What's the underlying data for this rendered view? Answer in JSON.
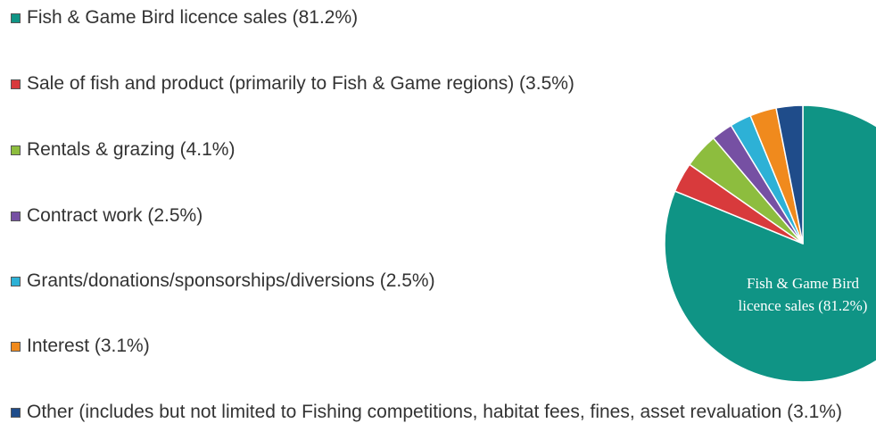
{
  "chart_data": {
    "type": "pie",
    "categories": [
      "Fish & Game Bird licence sales (81.2%)",
      "Sale of fish and product (primarily to Fish & Game regions) (3.5%)",
      "Rentals & grazing (4.1%)",
      "Contract work (2.5%)",
      "Grants/donations/sponsorships/diversions (2.5%)",
      "Interest (3.1%)",
      "Other (includes but not limited to Fishing competitions, habitat fees, fines, asset revaluation (3.1%)"
    ],
    "values": [
      81.2,
      3.5,
      4.1,
      2.5,
      2.5,
      3.1,
      3.1
    ],
    "colors": [
      "#0f9485",
      "#d83a3c",
      "#8dbd3e",
      "#7650a3",
      "#2db1d6",
      "#f08a1d",
      "#1f4c8a"
    ],
    "legend": "left"
  }
}
